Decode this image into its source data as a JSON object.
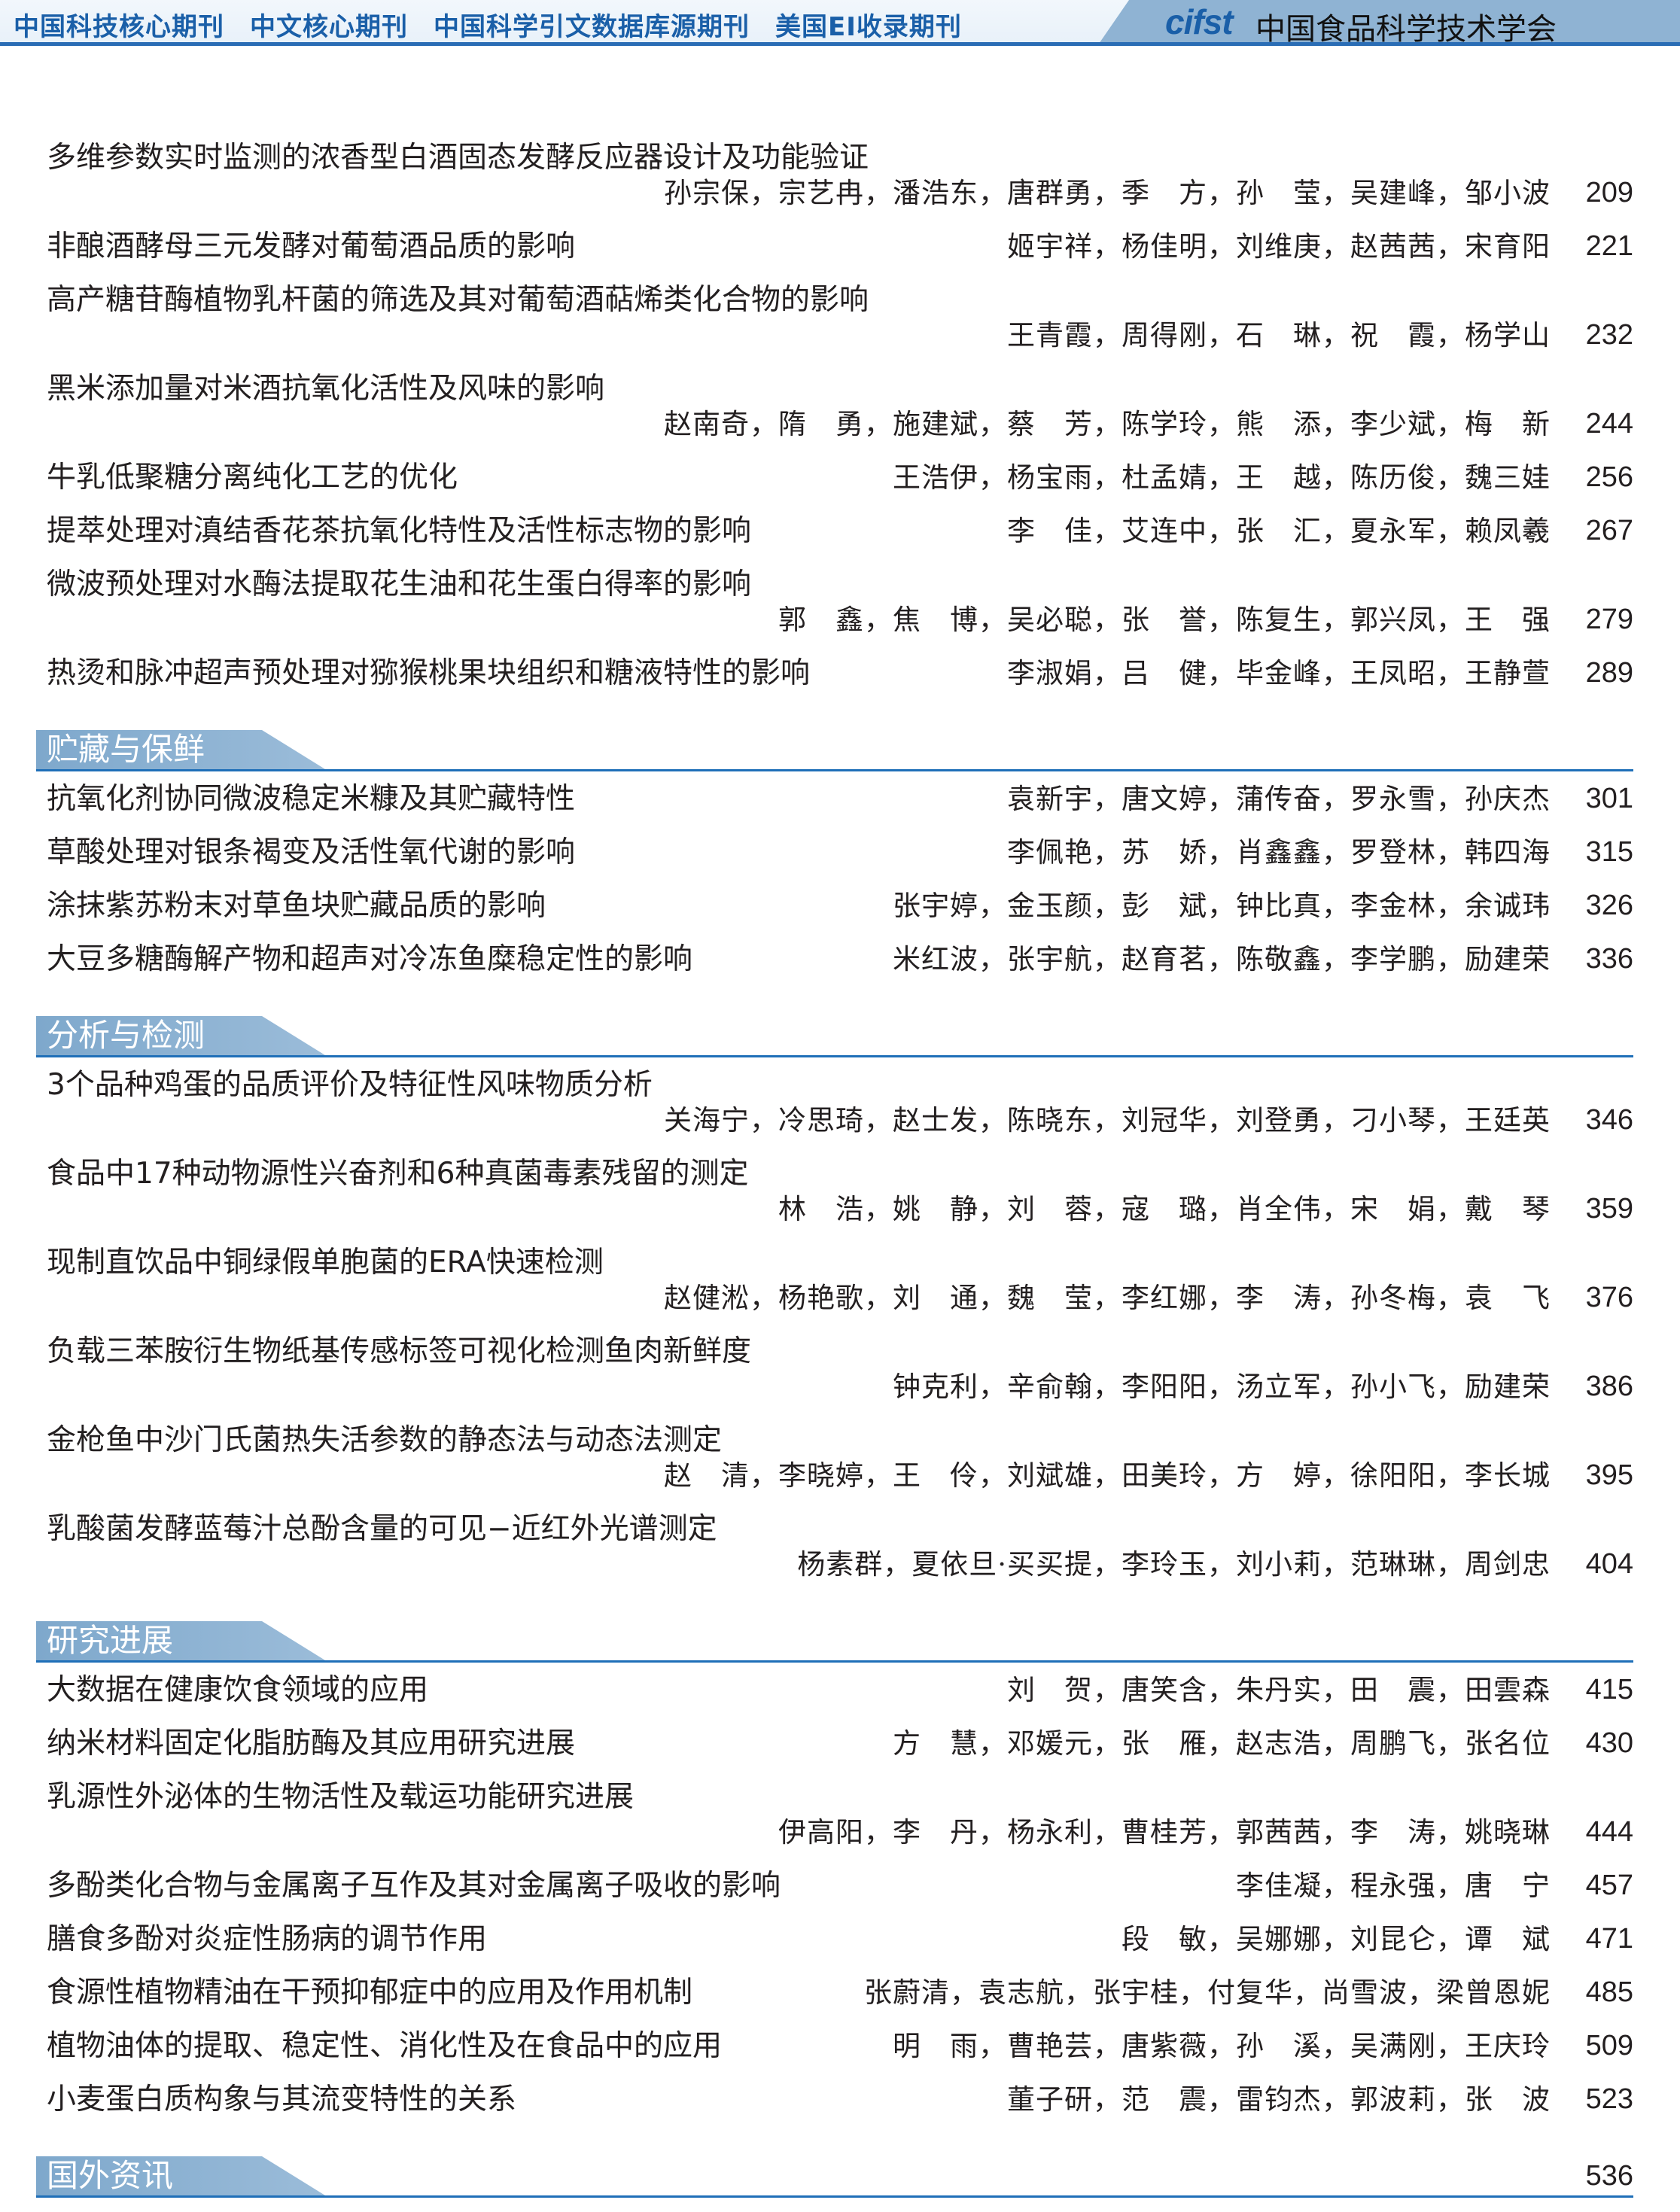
{
  "header": {
    "journals": [
      "中国科技核心期刊",
      "中文核心期刊",
      "中国科学引文数据库源期刊",
      "美国EI收录期刊"
    ],
    "logo": "cifst",
    "organization": "中国食品科学技术学会",
    "colors": {
      "brand_blue": "#1a5fa8",
      "tab_blue": "#8fb3d3",
      "rule_blue": "#1f6fb8"
    }
  },
  "sections": [
    {
      "heading": "",
      "entries": [
        {
          "title": "多维参数实时监测的浓香型白酒固态发酵反应器设计及功能验证",
          "authors": "孙宗保，宗艺冉，潘浩东，唐群勇，季　方，孙　莹，吴建峰，邹小波",
          "page": "209"
        },
        {
          "title": "非酿酒酵母三元发酵对葡萄酒品质的影响",
          "authors": "姬宇祥，杨佳明，刘维庚，赵茜茜，宋育阳",
          "page": "221"
        },
        {
          "title": "高产糖苷酶植物乳杆菌的筛选及其对葡萄酒萜烯类化合物的影响",
          "authors": "王青霞，周得刚，石　琳，祝　霞，杨学山",
          "page": "232"
        },
        {
          "title": "黑米添加量对米酒抗氧化活性及风味的影响",
          "authors": "赵南奇，隋　勇，施建斌，蔡　芳，陈学玲，熊　添，李少斌，梅　新",
          "page": "244"
        },
        {
          "title": "牛乳低聚糖分离纯化工艺的优化",
          "authors": "王浩伊，杨宝雨，杜孟婧，王　越，陈历俊，魏三娃",
          "page": "256"
        },
        {
          "title": "提萃处理对滇结香花茶抗氧化特性及活性标志物的影响",
          "authors": "李　佳，艾连中，张　汇，夏永军，赖凤羲",
          "page": "267"
        },
        {
          "title": "微波预处理对水酶法提取花生油和花生蛋白得率的影响",
          "authors": "郭　鑫，焦　博，吴必聪，张　誉，陈复生，郭兴凤，王　强",
          "page": "279"
        },
        {
          "title": "热烫和脉冲超声预处理对猕猴桃果块组织和糖液特性的影响",
          "authors": "李淑娟，吕　健，毕金峰，王凤昭，王静萱",
          "page": "289"
        }
      ]
    },
    {
      "heading": "贮藏与保鲜",
      "entries": [
        {
          "title": "抗氧化剂协同微波稳定米糠及其贮藏特性",
          "authors": "袁新宇，唐文婷，蒲传奋，罗永雪，孙庆杰",
          "page": "301"
        },
        {
          "title": "草酸处理对银条褐变及活性氧代谢的影响",
          "authors": "李佩艳，苏　娇，肖鑫鑫，罗登林，韩四海",
          "page": "315"
        },
        {
          "title": "涂抹紫苏粉末对草鱼块贮藏品质的影响",
          "authors": "张宇婷，金玉颜，彭　斌，钟比真，李金林，余诚玮",
          "page": "326"
        },
        {
          "title": "大豆多糖酶解产物和超声对冷冻鱼糜稳定性的影响",
          "authors": "米红波，张宇航，赵育茗，陈敬鑫，李学鹏，励建荣",
          "page": "336"
        }
      ]
    },
    {
      "heading": "分析与检测",
      "entries": [
        {
          "title": "3个品种鸡蛋的品质评价及特征性风味物质分析",
          "authors": "关海宁，冷思琦，赵士发，陈晓东，刘冠华，刘登勇，刁小琴，王廷英",
          "page": "346"
        },
        {
          "title": "食品中17种动物源性兴奋剂和6种真菌毒素残留的测定",
          "authors": "林　浩，姚　静，刘　蓉，寇　璐，肖全伟，宋　娟，戴　琴",
          "page": "359"
        },
        {
          "title": "现制直饮品中铜绿假单胞菌的ERA快速检测",
          "authors": "赵健淞，杨艳歌，刘　通，魏　莹，李红娜，李　涛，孙冬梅，袁　飞",
          "page": "376"
        },
        {
          "title": "负载三苯胺衍生物纸基传感标签可视化检测鱼肉新鲜度",
          "authors": "钟克利，辛俞翰，李阳阳，汤立军，孙小飞，励建荣",
          "page": "386"
        },
        {
          "title": "金枪鱼中沙门氏菌热失活参数的静态法与动态法测定",
          "authors": "赵　清，李晓婷，王　伶，刘斌雄，田美玲，方　婷，徐阳阳，李长城",
          "page": "395"
        },
        {
          "title": "乳酸菌发酵蓝莓汁总酚含量的可见−近红外光谱测定",
          "authors": "杨素群，夏依旦·买买提，李玲玉，刘小莉，范琳琳，周剑忠",
          "page": "404"
        }
      ]
    },
    {
      "heading": "研究进展",
      "entries": [
        {
          "title": "大数据在健康饮食领域的应用",
          "authors": "刘　贺，唐笑含，朱丹实，田　震，田雲森",
          "page": "415"
        },
        {
          "title": "纳米材料固定化脂肪酶及其应用研究进展",
          "authors": "方　慧，邓媛元，张　雁，赵志浩，周鹏飞，张名位",
          "page": "430"
        },
        {
          "title": "乳源性外泌体的生物活性及载运功能研究进展",
          "authors": "伊高阳，李　丹，杨永利，曹桂芳，郭茜茜，李　涛，姚晓琳",
          "page": "444"
        },
        {
          "title": "多酚类化合物与金属离子互作及其对金属离子吸收的影响",
          "authors": "李佳凝，程永强，唐　宁",
          "page": "457"
        },
        {
          "title": "膳食多酚对炎症性肠病的调节作用",
          "authors": "段　敏，吴娜娜，刘昆仑，谭　斌",
          "page": "471"
        },
        {
          "title": "食源性植物精油在干预抑郁症中的应用及作用机制",
          "authors": "张蔚清，袁志航，张宇桂，付复华，尚雪波，梁曾恩妮",
          "page": "485"
        },
        {
          "title": "植物油体的提取、稳定性、消化性及在食品中的应用",
          "authors": "明　雨，曹艳芸，唐紫薇，孙　溪，吴满刚，王庆玲",
          "page": "509"
        },
        {
          "title": "小麦蛋白质构象与其流变特性的关系",
          "authors": "董子研，范　震，雷钧杰，郭波莉，张　波",
          "page": "523"
        }
      ]
    },
    {
      "heading": "国外资讯",
      "page": "536",
      "entries": []
    }
  ]
}
